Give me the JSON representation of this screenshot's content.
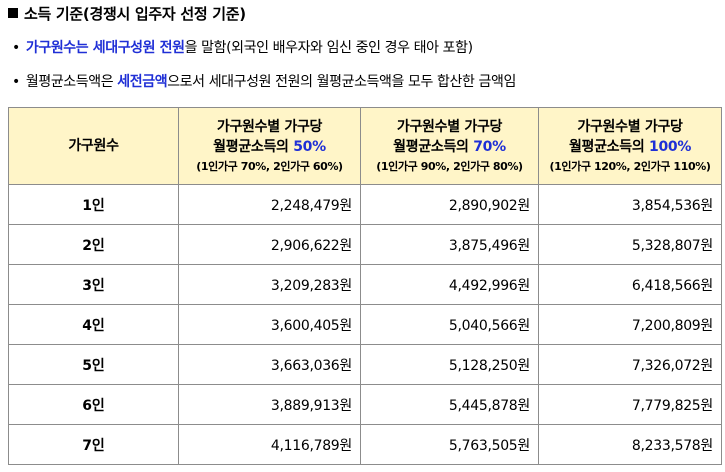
{
  "title": "소득 기준(경쟁시 입주자 선정 기준)",
  "bullets": {
    "b1_highlight": "가구원수는 세대구성원 전원",
    "b1_rest": "을 말함(외국인 배우자와 임신 중인 경우 태아 포함)",
    "b2_pre": "월평균소득액은 ",
    "b2_highlight": "세전금액",
    "b2_rest": "으로서 세대구성원 전원의 월평균소득액을 모두 합산한 금액임"
  },
  "table": {
    "header_col0": "가구원수",
    "columns": [
      {
        "line1": "가구원수별 가구당",
        "line2": "월평균소득의 ",
        "pct": "50%",
        "sub": "(1인가구 70%, 2인가구 60%)"
      },
      {
        "line1": "가구원수별 가구당",
        "line2": "월평균소득의 ",
        "pct": "70%",
        "sub": "(1인가구 90%, 2인가구 80%)"
      },
      {
        "line1": "가구원수별 가구당",
        "line2": "월평균소득의 ",
        "pct": "100%",
        "sub": "(1인가구 120%, 2인가구 110%)"
      }
    ],
    "rows": [
      {
        "label": "1인",
        "v50": "2,248,479원",
        "v70": "2,890,902원",
        "v100": "3,854,536원"
      },
      {
        "label": "2인",
        "v50": "2,906,622원",
        "v70": "3,875,496원",
        "v100": "5,328,807원"
      },
      {
        "label": "3인",
        "v50": "3,209,283원",
        "v70": "4,492,996원",
        "v100": "6,418,566원"
      },
      {
        "label": "4인",
        "v50": "3,600,405원",
        "v70": "5,040,566원",
        "v100": "7,200,809원"
      },
      {
        "label": "5인",
        "v50": "3,663,036원",
        "v70": "5,128,250원",
        "v100": "7,326,072원"
      },
      {
        "label": "6인",
        "v50": "3,889,913원",
        "v70": "5,445,878원",
        "v100": "7,779,825원"
      },
      {
        "label": "7인",
        "v50": "4,116,789원",
        "v70": "5,763,505원",
        "v100": "8,233,578원"
      }
    ]
  },
  "colors": {
    "accent_blue": "#1f2fd6",
    "header_bg": "#fff5c8",
    "border": "#8c8c8c"
  }
}
